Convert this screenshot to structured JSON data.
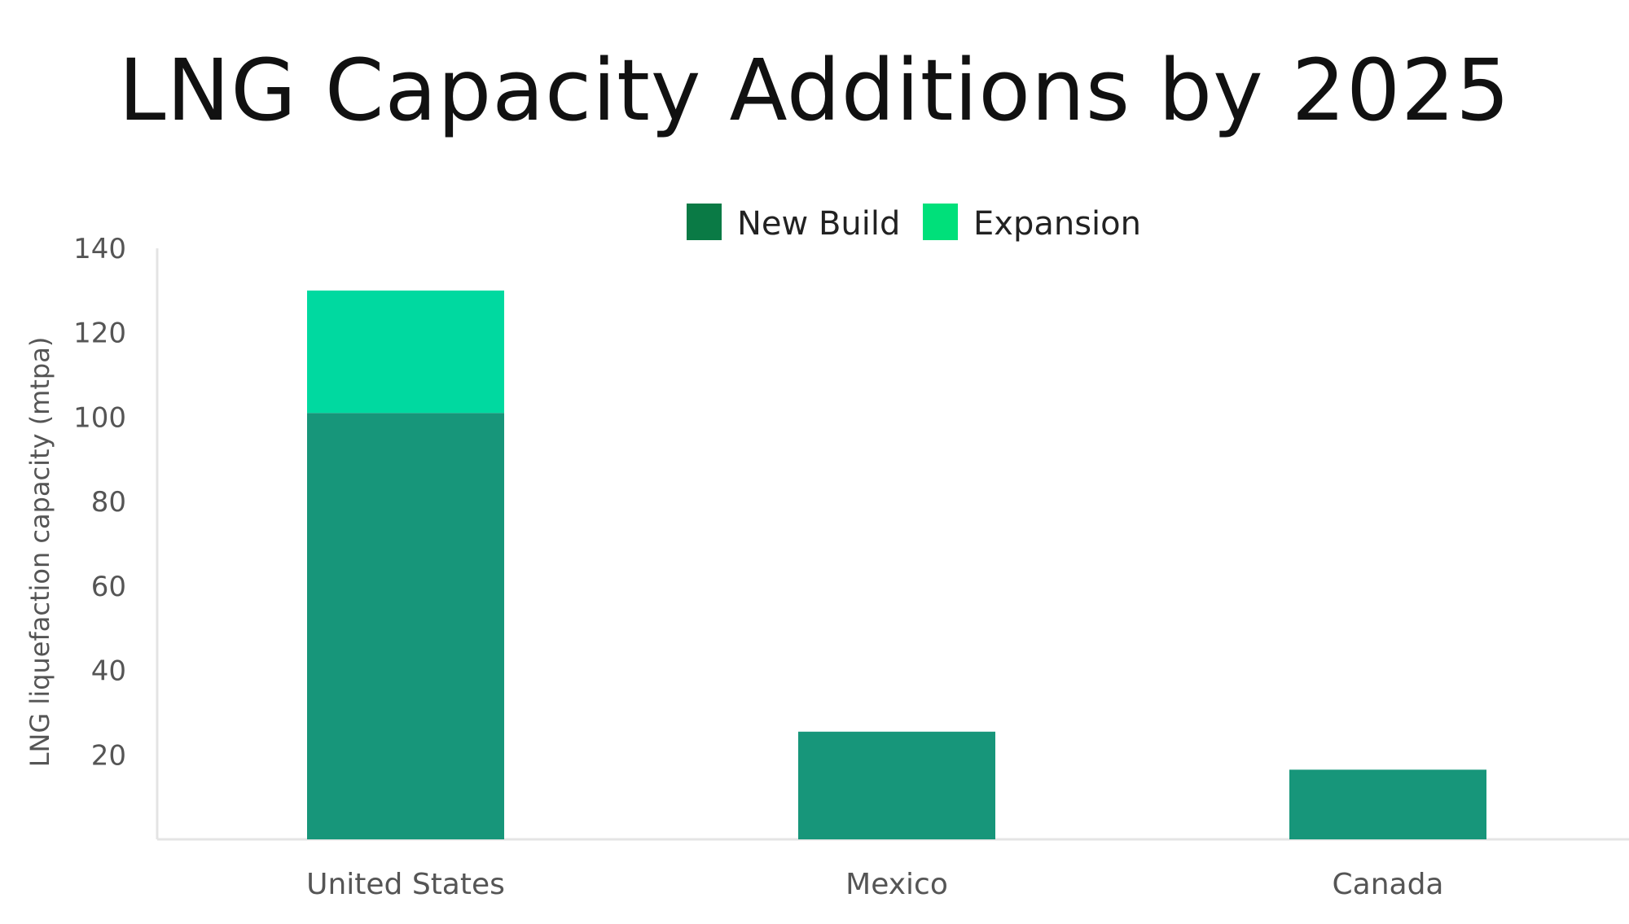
{
  "chart_data": {
    "type": "bar",
    "stacked": true,
    "title": "LNG Capacity Additions by 2025",
    "xlabel": "",
    "ylabel": "LNG liquefaction capacity (mtpa)",
    "categories": [
      "United States",
      "Mexico",
      "Canada"
    ],
    "series": [
      {
        "name": "New Build",
        "values": [
          101,
          25.5,
          16.5
        ],
        "color": "#17967a"
      },
      {
        "name": "Expansion",
        "values": [
          29,
          0,
          0
        ],
        "color": "#00d9a0"
      }
    ],
    "legend_colors": [
      "#0a7a45",
      "#00e07a"
    ],
    "ylim": [
      0,
      140
    ],
    "yticks": [
      20,
      40,
      60,
      80,
      100,
      120,
      140
    ],
    "grid": false,
    "legend_position": "top-center"
  }
}
